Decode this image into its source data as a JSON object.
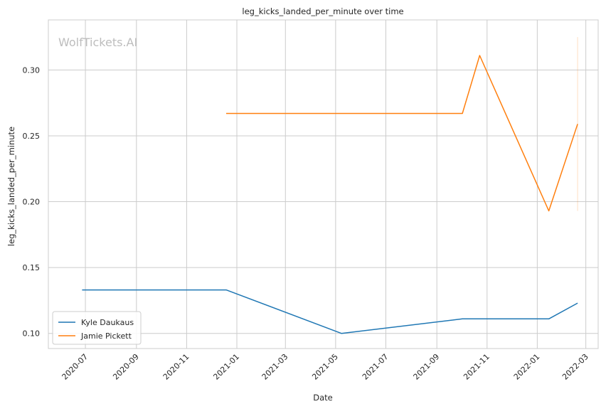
{
  "chart_data": {
    "type": "line",
    "title": "leg_kicks_landed_per_minute over time",
    "xlabel": "Date",
    "ylabel": "leg_kicks_landed_per_minute",
    "watermark": "WolfTickets.AI",
    "xlim": [
      "2020-05-17",
      "2022-03-16"
    ],
    "ylim": [
      0.0885,
      0.338
    ],
    "x_ticks": [
      "2020-07",
      "2020-09",
      "2020-11",
      "2021-01",
      "2021-03",
      "2021-05",
      "2021-07",
      "2021-09",
      "2021-11",
      "2022-01",
      "2022-03"
    ],
    "y_ticks": [
      "0.10",
      "0.15",
      "0.20",
      "0.25",
      "0.30"
    ],
    "grid": true,
    "legend_position": "lower-left",
    "series": [
      {
        "name": "Kyle Daukaus",
        "color": "#1f77b4",
        "points": [
          {
            "x": "2020-06-27",
            "y": 0.133
          },
          {
            "x": "2020-12-19",
            "y": 0.133
          },
          {
            "x": "2021-05-08",
            "y": 0.1
          },
          {
            "x": "2021-10-02",
            "y": 0.111
          },
          {
            "x": "2022-01-15",
            "y": 0.111
          },
          {
            "x": "2022-02-19",
            "y": 0.123
          }
        ]
      },
      {
        "name": "Jamie Pickett",
        "color": "#ff7f0e",
        "points": [
          {
            "x": "2020-12-19",
            "y": 0.267
          },
          {
            "x": "2021-10-02",
            "y": 0.267
          },
          {
            "x": "2021-10-23",
            "y": 0.311
          },
          {
            "x": "2022-01-15",
            "y": 0.193
          },
          {
            "x": "2022-02-19",
            "y": 0.259
          }
        ],
        "error_bar": {
          "x": "2022-02-19",
          "low": 0.193,
          "high": 0.325
        }
      }
    ]
  }
}
